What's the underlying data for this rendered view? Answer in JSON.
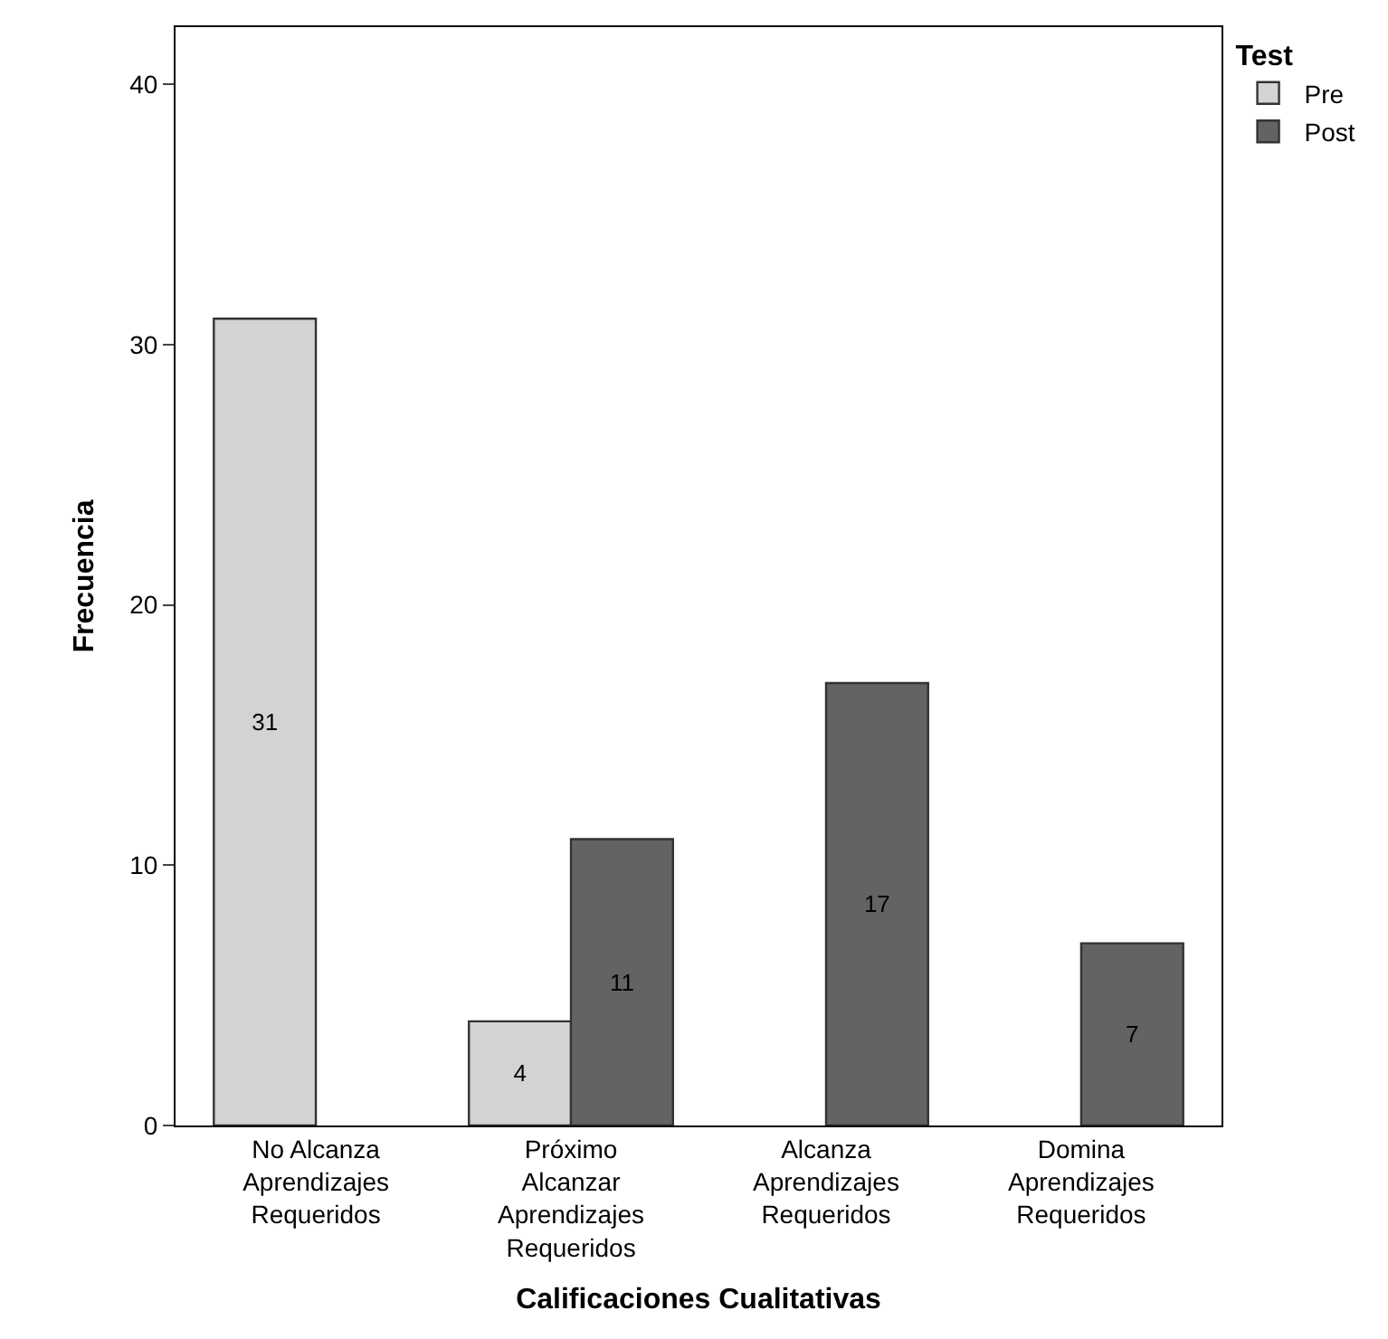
{
  "chart_data": {
    "type": "bar",
    "xlabel": "Calificaciones Cualitativas",
    "ylabel": "Frecuencia",
    "legend_title": "Test",
    "categories": [
      "No Alcanza Aprendizajes Requeridos",
      "Próximo Alcanzar Aprendizajes Requeridos",
      "Alcanza Aprendizajes Requeridos",
      "Domina Aprendizajes Requeridos"
    ],
    "series": [
      {
        "name": "Pre",
        "color": "#d3d3d3",
        "values": [
          31,
          4,
          null,
          null
        ]
      },
      {
        "name": "Post",
        "color": "#636363",
        "values": [
          null,
          11,
          17,
          7
        ]
      }
    ],
    "ylim": [
      0,
      42.2
    ],
    "yticks": [
      0,
      10,
      20,
      30,
      40
    ],
    "legend": "top right",
    "data_labels": true
  }
}
